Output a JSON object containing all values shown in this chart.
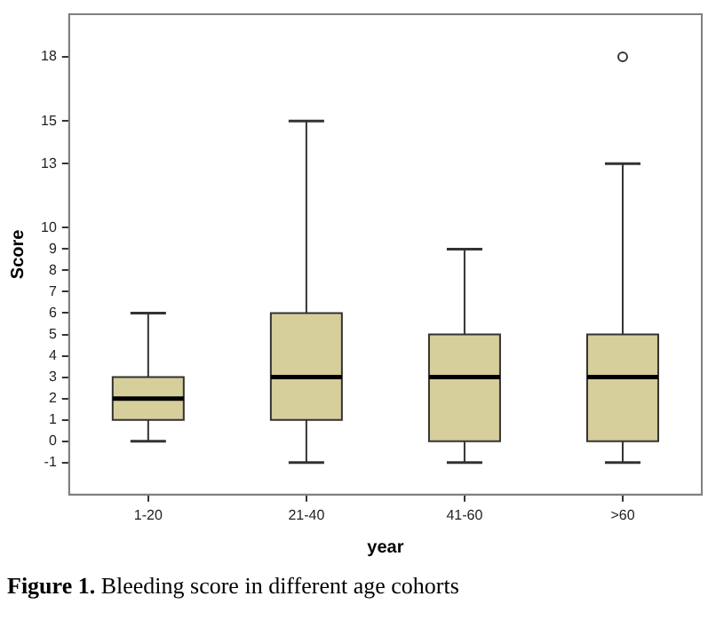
{
  "chart_data": {
    "type": "box",
    "xlabel": "year",
    "ylabel": "Score",
    "categories": [
      "1-20",
      "21-40",
      "41-60",
      ">60"
    ],
    "boxes": [
      {
        "low": 0,
        "q1": 1,
        "median": 2,
        "q3": 3,
        "high": 6
      },
      {
        "low": -1,
        "q1": 1,
        "median": 3,
        "q3": 6,
        "high": 15
      },
      {
        "low": -1,
        "q1": 0,
        "median": 3,
        "q3": 5,
        "high": 9
      },
      {
        "low": -1,
        "q1": 0,
        "median": 3,
        "q3": 5,
        "high": 13,
        "outliers": [
          18
        ]
      }
    ],
    "color": "#d6cf9c",
    "ylim": [
      -2.5,
      20
    ],
    "yticks": [
      -1,
      0,
      1,
      2,
      3,
      4,
      5,
      6,
      7,
      8,
      9,
      10,
      13,
      15,
      18
    ],
    "grid": false,
    "legend": false,
    "annotations": [
      "Figure 1. Bleeding score in different age cohorts"
    ]
  }
}
